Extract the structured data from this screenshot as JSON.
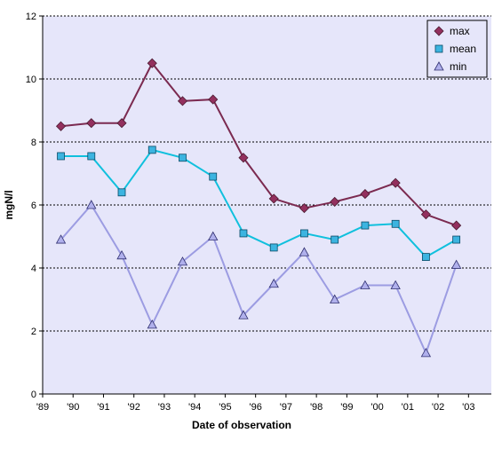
{
  "chart_data": {
    "type": "line",
    "xlabel": "Date of observation",
    "ylabel": "mgN/l",
    "ylim": [
      0,
      12
    ],
    "yticks": [
      0,
      2,
      4,
      6,
      8,
      10,
      12
    ],
    "xticks": [
      "'89",
      "'90",
      "'91",
      "'92",
      "'93",
      "'94",
      "'95",
      "'96",
      "'97",
      "'98",
      "'99",
      "'00",
      "'01",
      "'02",
      "'03"
    ],
    "x": [
      1989.6,
      1990.6,
      1991.6,
      1992.6,
      1993.6,
      1994.6,
      1995.6,
      1996.6,
      1997.6,
      1998.6,
      1999.6,
      2000.6,
      2001.6,
      2002.6
    ],
    "xlim": [
      1989,
      2003.75
    ],
    "grid": "horizontal dotted",
    "legend_position": "top-right",
    "series": [
      {
        "name": "max",
        "marker": "diamond",
        "line_color": "#7b2a50",
        "marker_color": "#93305e",
        "values": [
          8.5,
          8.6,
          8.6,
          10.5,
          9.3,
          9.35,
          7.5,
          6.2,
          5.9,
          6.1,
          6.35,
          6.7,
          5.7,
          5.35
        ]
      },
      {
        "name": "mean",
        "marker": "square",
        "line_color": "#10c0dd",
        "marker_color": "#3cb4e0",
        "values": [
          7.55,
          7.55,
          6.4,
          7.75,
          7.5,
          6.9,
          5.1,
          4.65,
          5.1,
          4.9,
          5.35,
          5.4,
          4.35,
          4.9
        ]
      },
      {
        "name": "min",
        "marker": "triangle",
        "line_color": "#9c9ce2",
        "marker_color": "#b0b0ec",
        "values": [
          4.9,
          6.0,
          4.4,
          2.2,
          4.2,
          5.0,
          2.5,
          3.5,
          4.5,
          3.0,
          3.45,
          3.45,
          1.3,
          4.1
        ]
      }
    ]
  },
  "colors": {
    "plot_background": "#e6e6fa",
    "gridline": "#000000"
  }
}
